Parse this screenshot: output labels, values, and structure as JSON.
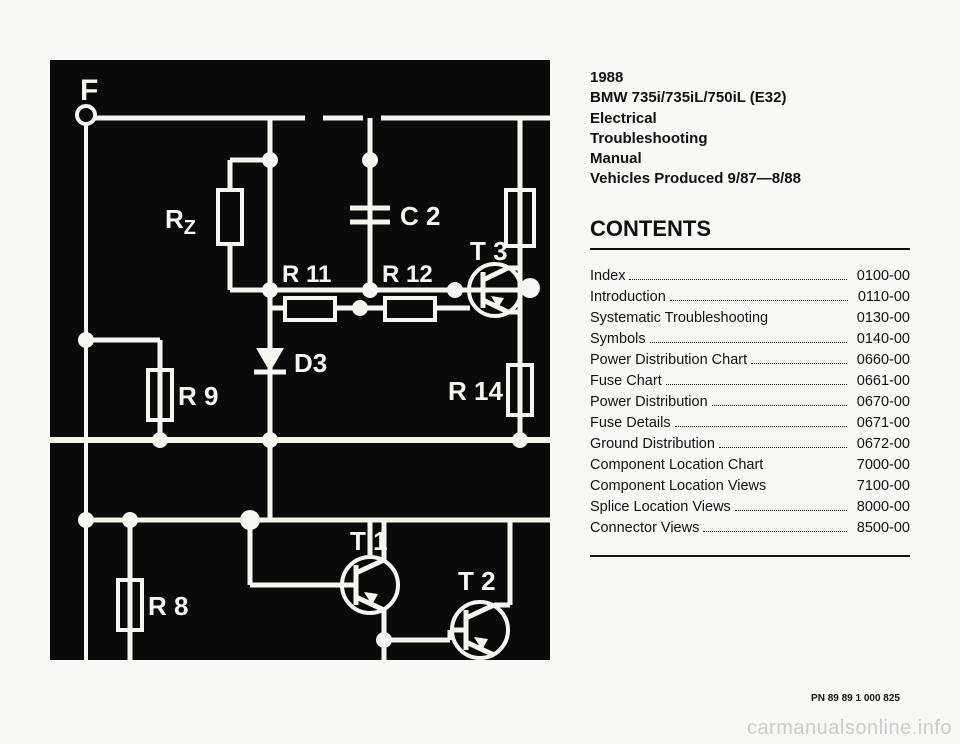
{
  "header": {
    "year": "1988",
    "model": "BMW 735i/735iL/750iL (E32)",
    "line3": "Electrical",
    "line4": "Troubleshooting",
    "line5": "Manual",
    "line6": "Vehicles Produced 9/87—8/88"
  },
  "contents_heading": "CONTENTS",
  "toc": [
    {
      "label": "Index",
      "dots": true,
      "val": "0100-00"
    },
    {
      "label": "Introduction",
      "dots": true,
      "val": "0110-00"
    },
    {
      "label": "Systematic Troubleshooting",
      "dots": false,
      "val": "0130-00"
    },
    {
      "label": "Symbols",
      "dots": true,
      "val": "0140-00"
    },
    {
      "label": "Power Distribution Chart",
      "dots": true,
      "val": "0660-00"
    },
    {
      "label": "Fuse Chart",
      "dots": true,
      "val": "0661-00"
    },
    {
      "label": "Power Distribution",
      "dots": true,
      "val": "0670-00"
    },
    {
      "label": "Fuse Details",
      "dots": true,
      "val": "0671-00"
    },
    {
      "label": "Ground Distribution",
      "dots": true,
      "val": "0672-00"
    },
    {
      "label": "Component Location Chart",
      "dots": false,
      "val": "7000-00"
    },
    {
      "label": "Component Location Views",
      "dots": false,
      "val": "7100-00"
    },
    {
      "label": "Splice Location Views",
      "dots": true,
      "val": "8000-00"
    },
    {
      "label": "Connector Views",
      "dots": true,
      "val": "8500-00"
    }
  ],
  "pn": "PN 89 89 1 000 825",
  "watermark": "carmanualsonline.info",
  "diagram": {
    "bg": "#0a0a0a",
    "stroke": "#f5f5f2",
    "stroke_w": 4,
    "stroke_thick": 6,
    "font": "bold 26px Arial",
    "font_small": "bold 24px Arial",
    "labels": {
      "F": "F",
      "Rz": "Rz",
      "C2": "C 2",
      "T3": "T 3",
      "R11": "R 11",
      "R12": "R 12",
      "D3": "D3",
      "R9": "R 9",
      "R14": "R 14",
      "T1": "T 1",
      "R8": "R 8",
      "T2": "T 2"
    }
  }
}
